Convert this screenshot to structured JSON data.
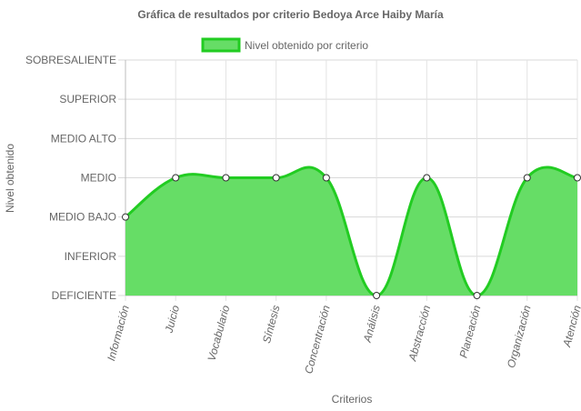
{
  "chart_data": {
    "type": "area",
    "title": "Gráfica de resultados por criterio Bedoya Arce Haiby María",
    "xlabel": "Criterios",
    "ylabel": "Nivel obtenido",
    "categories": [
      "Información",
      "Juicio",
      "Vocabulario",
      "Síntesis",
      "Concentración",
      "Análisis",
      "Abstracción",
      "Planeación",
      "Organización",
      "Atención"
    ],
    "y_levels": [
      "DEFICIENTE",
      "INFERIOR",
      "MEDIO BAJO",
      "MEDIO",
      "MEDIO ALTO",
      "SUPERIOR",
      "SOBRESALIENTE"
    ],
    "ylim": [
      0,
      6
    ],
    "grid": true,
    "legend_position": "top",
    "series": [
      {
        "name": "Nivel obtenido por criterio",
        "values": [
          2,
          3,
          3,
          3,
          3,
          0,
          3,
          0,
          3,
          3
        ],
        "fill_color": "#66dd66",
        "line_color": "#22cc22"
      }
    ]
  }
}
